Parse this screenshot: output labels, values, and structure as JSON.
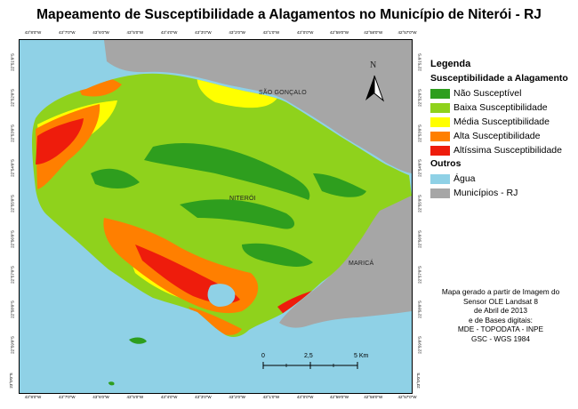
{
  "title": "Mapeamento de Susceptibilidade a Alagamentos no Município de Niterói - RJ",
  "map": {
    "labels": {
      "sao_goncalo": "SÃO GONÇALO",
      "niteroi": "NITERÓI",
      "marica": "MARICÁ"
    },
    "north_arrow": "N",
    "scale_bar": [
      "0",
      "2,5",
      "5 Km"
    ],
    "ticks_top": [
      "43°8'0\"W",
      "43°7'0\"W",
      "43°6'0\"W",
      "43°5'0\"W",
      "43°4'0\"W",
      "43°3'0\"W",
      "43°2'0\"W",
      "43°1'0\"W",
      "43°0'0\"W",
      "42°59'0\"W",
      "42°58'0\"W",
      "42°57'0\"W"
    ],
    "ticks_bottom": [
      "43°8'0\"W",
      "43°7'0\"W",
      "43°6'0\"W",
      "43°5'0\"W",
      "43°4'0\"W",
      "43°3'0\"W",
      "43°2'0\"W",
      "43°1'0\"W",
      "43°0'0\"W",
      "42°59'0\"W",
      "42°58'0\"W",
      "42°57'0\"W"
    ],
    "ticks_left": [
      "22°51'0\"S",
      "22°52'0\"S",
      "22°53'0\"S",
      "22°54'0\"S",
      "22°55'0\"S",
      "22°56'0\"S",
      "22°57'0\"S",
      "22°58'0\"S",
      "22°59'0\"S",
      "23°0'0\"S"
    ],
    "ticks_right": [
      "22°51'0\"S",
      "22°52'0\"S",
      "22°53'0\"S",
      "22°54'0\"S",
      "22°55'0\"S",
      "22°56'0\"S",
      "22°57'0\"S",
      "22°58'0\"S",
      "22°59'0\"S",
      "23°0'0\"S"
    ]
  },
  "legend": {
    "title": "Legenda",
    "section1": "Susceptibilidade a Alagamento",
    "classes": [
      {
        "label": "Não Susceptível",
        "color": "#2e9e1e"
      },
      {
        "label": "Baixa Susceptibilidade",
        "color": "#8fd21c"
      },
      {
        "label": "Média Susceptibilidade",
        "color": "#ffff00"
      },
      {
        "label": "Alta Susceptibilidade",
        "color": "#ff7f00"
      },
      {
        "label": "Altíssima Susceptibilidade",
        "color": "#ee1c0c"
      }
    ],
    "section2": "Outros",
    "others": [
      {
        "label": "Água",
        "color": "#8fd1e6"
      },
      {
        "label": "Municípios - RJ",
        "color": "#a6a6a6"
      }
    ]
  },
  "source_note": [
    "Mapa gerado a partir de Imagem do",
    "Sensor OLE Landsat 8",
    "de Abril de 2013",
    "e de Bases digitais:",
    "MDE - TOPODATA - INPE",
    "GSC - WGS 1984"
  ]
}
